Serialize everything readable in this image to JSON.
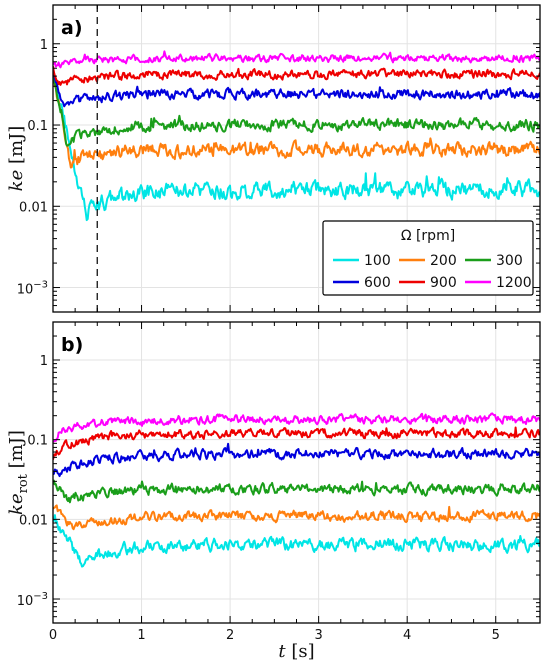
{
  "chart_data": [
    {
      "type": "line",
      "panel_label": "a)",
      "ylabel": "ke",
      "ylabel_unit": "[mJ]",
      "yscale": "log",
      "ylim": [
        0.0005,
        3
      ],
      "xlim": [
        0,
        5.5
      ],
      "grid": true,
      "yticks": [
        {
          "value": 0.001,
          "base": "10",
          "exp": "−3"
        },
        {
          "value": 0.01,
          "label": "0.01"
        },
        {
          "value": 0.1,
          "label": "0.1"
        },
        {
          "value": 1,
          "label": "1"
        }
      ],
      "vline": {
        "x": 0.5,
        "style": "dashed"
      },
      "legend": {
        "title": "Ω [rpm]",
        "placement": "lower-right",
        "columns": 3
      },
      "series": [
        {
          "name": "100",
          "color": "#00e5e5",
          "start": 0.4,
          "dip": 0.0085,
          "dip_t": 0.38,
          "level": 0.016,
          "noise": 0.13
        },
        {
          "name": "200",
          "color": "#ff7f0e",
          "start": 0.4,
          "dip": 0.034,
          "dip_t": 0.2,
          "level": 0.05,
          "noise": 0.11
        },
        {
          "name": "300",
          "color": "#1a9e1a",
          "start": 0.4,
          "dip": 0.06,
          "dip_t": 0.15,
          "level": 0.1,
          "noise": 0.09
        },
        {
          "name": "600",
          "color": "#0000dd",
          "start": 0.45,
          "dip": 0.18,
          "dip_t": 0.1,
          "level": 0.24,
          "noise": 0.08
        },
        {
          "name": "900",
          "color": "#ee0000",
          "start": 0.5,
          "dip": 0.32,
          "dip_t": 0.08,
          "level": 0.42,
          "noise": 0.07
        },
        {
          "name": "1200",
          "color": "#ff00ff",
          "start": 0.55,
          "dip": 0.55,
          "dip_t": 0.06,
          "level": 0.66,
          "noise": 0.06
        }
      ]
    },
    {
      "type": "line",
      "panel_label": "b)",
      "ylabel": "ke",
      "ylabel_sub": "rot",
      "ylabel_unit": "[mJ]",
      "yscale": "log",
      "ylim": [
        0.0005,
        3
      ],
      "xlim": [
        0,
        5.5
      ],
      "xlabel": "t",
      "xlabel_unit": "[s]",
      "xticks": [
        0,
        1,
        2,
        3,
        4,
        5
      ],
      "grid": true,
      "yticks": [
        {
          "value": 0.001,
          "base": "10",
          "exp": "−3"
        },
        {
          "value": 0.01,
          "label": "0.01"
        },
        {
          "value": 0.1,
          "label": "0.1"
        },
        {
          "value": 1,
          "label": "1"
        }
      ],
      "series": [
        {
          "name": "100",
          "color": "#00e5e5",
          "start": 0.012,
          "dip": 0.0028,
          "dip_t": 0.32,
          "level": 0.0048,
          "noise": 0.1
        },
        {
          "name": "200",
          "color": "#ff7f0e",
          "start": 0.015,
          "dip": 0.0075,
          "dip_t": 0.22,
          "level": 0.011,
          "noise": 0.08
        },
        {
          "name": "300",
          "color": "#1a9e1a",
          "start": 0.03,
          "dip": 0.017,
          "dip_t": 0.18,
          "level": 0.024,
          "noise": 0.08
        },
        {
          "name": "600",
          "color": "#0000dd",
          "start": 0.04,
          "dip": 0.04,
          "dip_t": 0.12,
          "level": 0.066,
          "noise": 0.08
        },
        {
          "name": "900",
          "color": "#ee0000",
          "start": 0.06,
          "dip": 0.08,
          "dip_t": 0.1,
          "level": 0.12,
          "noise": 0.07
        },
        {
          "name": "1200",
          "color": "#ff00ff",
          "start": 0.1,
          "dip": 0.13,
          "dip_t": 0.08,
          "level": 0.18,
          "noise": 0.07
        }
      ]
    }
  ]
}
